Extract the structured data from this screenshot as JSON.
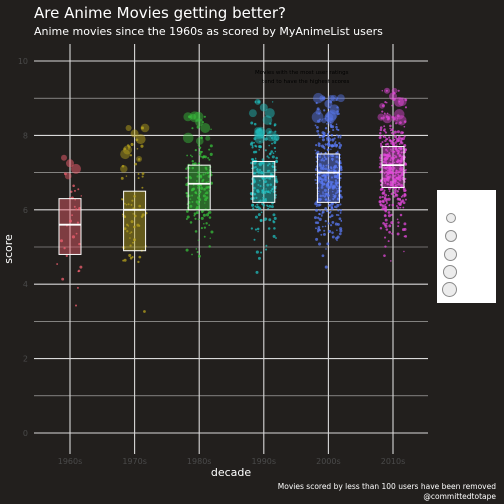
{
  "title": "Are Anime Movies getting better?",
  "subtitle": "Anime movies since the 1960s as scored by MyAnimeList users",
  "caption": {
    "line1": "Movies scored by less than 100 users have been removed",
    "line2": "@committedtotape"
  },
  "annotation": {
    "line1": "Movies with the most user ratings",
    "line2": "tend to have the highest scores"
  },
  "colors": {
    "background": "#221f1d",
    "grid": "#d9d9d9",
    "axis_text": "#4a4a4a"
  },
  "chart_data": {
    "type": "boxplot-jitter",
    "xlabel": "decade",
    "ylabel": "score",
    "ylim": [
      0,
      10
    ],
    "yticks": [
      0,
      2,
      4,
      6,
      8,
      10
    ],
    "categories": [
      "1960s",
      "1970s",
      "1980s",
      "1990s",
      "2000s",
      "2010s"
    ],
    "colors": [
      "#f0606f",
      "#b5a11c",
      "#37c03b",
      "#1fbcbc",
      "#5878f0",
      "#e048d8"
    ],
    "boxes": [
      {
        "decade": "1960s",
        "q1": 4.8,
        "median": 5.6,
        "q3": 6.3,
        "min": 2.8,
        "max": 7.4,
        "n": 30
      },
      {
        "decade": "1970s",
        "q1": 4.9,
        "median": 6.0,
        "q3": 6.5,
        "min": 3.1,
        "max": 8.2,
        "n": 70
      },
      {
        "decade": "1980s",
        "q1": 6.0,
        "median": 6.7,
        "q3": 7.2,
        "min": 3.5,
        "max": 8.5,
        "n": 160
      },
      {
        "decade": "1990s",
        "q1": 6.2,
        "median": 6.9,
        "q3": 7.3,
        "min": 2.8,
        "max": 8.9,
        "n": 220
      },
      {
        "decade": "2000s",
        "q1": 6.2,
        "median": 7.0,
        "q3": 7.5,
        "min": 2.5,
        "max": 9.0,
        "n": 380
      },
      {
        "decade": "2010s",
        "q1": 6.6,
        "median": 7.2,
        "q3": 7.7,
        "min": 3.6,
        "max": 9.2,
        "n": 420
      }
    ],
    "legend": {
      "title": "",
      "placement": "right",
      "entries": 5,
      "shape": "circle"
    },
    "grid": true
  }
}
